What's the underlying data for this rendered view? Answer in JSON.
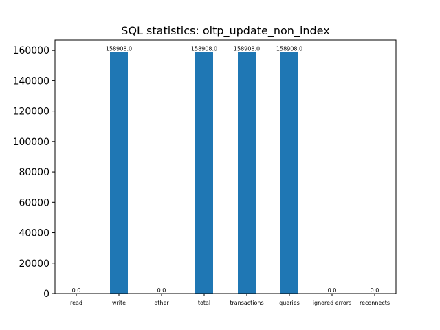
{
  "chart_data": {
    "type": "bar",
    "title": "SQL statistics: oltp_update_non_index",
    "xlabel": "",
    "ylabel": "",
    "categories": [
      "read",
      "write",
      "other",
      "total",
      "transactions",
      "queries",
      "ignored errors",
      "reconnects"
    ],
    "values": [
      0.0,
      158908.0,
      0.0,
      158908.0,
      158908.0,
      158908.0,
      0.0,
      0.0
    ],
    "data_labels": [
      "0.0",
      "158908.0",
      "0.0",
      "158908.0",
      "158908.0",
      "158908.0",
      "0.0",
      "0.0"
    ],
    "ylim": [
      0,
      166853
    ],
    "yticks": [
      0,
      20000,
      40000,
      60000,
      80000,
      100000,
      120000,
      140000,
      160000
    ],
    "ytick_labels": [
      "0",
      "20000",
      "40000",
      "60000",
      "80000",
      "100000",
      "120000",
      "140000",
      "160000"
    ],
    "bar_color": "#1f77b4",
    "grid": false,
    "legend": "none"
  }
}
